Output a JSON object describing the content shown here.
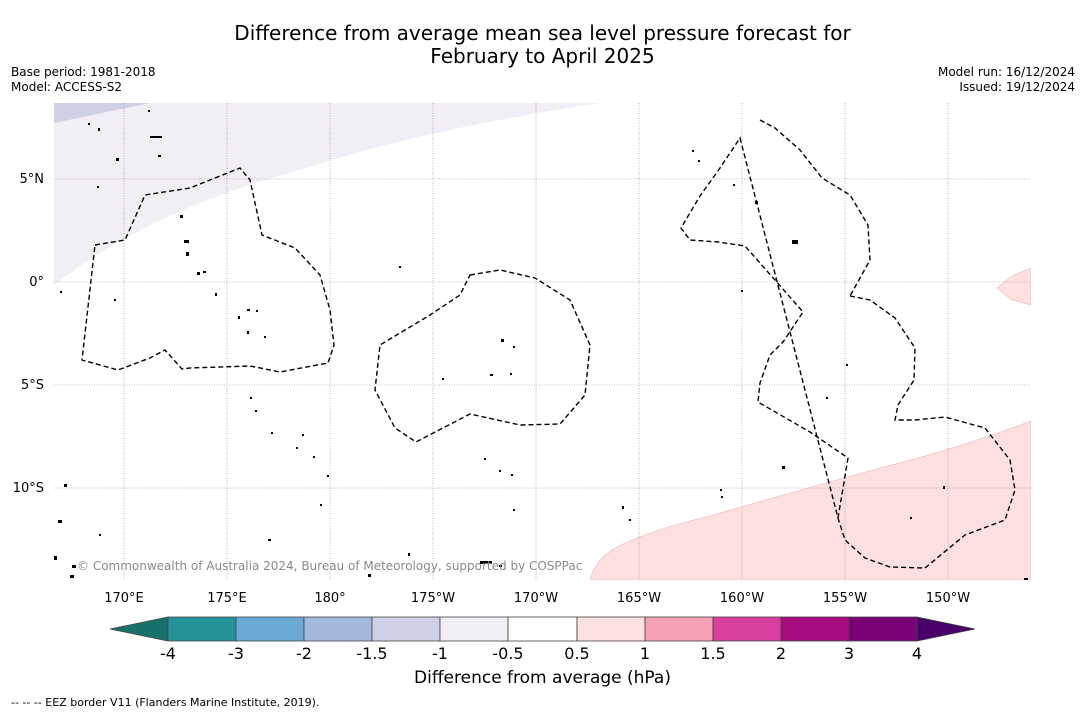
{
  "title_line1": "Difference from average mean sea level pressure forecast for",
  "title_line2": "February to April 2025",
  "base_period": "Base period: 1981-2018",
  "model": "Model: ACCESS-S2",
  "model_run": "Model run: 16/12/2024",
  "issued": "Issued: 19/12/2024",
  "copyright": "© Commonwealth of Australia 2024, Bureau of Meteorology, supported by COSPPac",
  "lat_labels": [
    "5°N",
    "0°",
    "5°S",
    "10°S"
  ],
  "lon_labels": [
    "170°E",
    "175°E",
    "180°",
    "175°W",
    "170°W",
    "165°W",
    "160°W",
    "155°W",
    "150°W"
  ],
  "colorbar": {
    "ticks": [
      "-4",
      "-3",
      "-2",
      "-1.5",
      "-1",
      "-0.5",
      "0.5",
      "1",
      "1.5",
      "2",
      "3",
      "4"
    ],
    "colors": [
      "#17706a",
      "#25939a",
      "#69a9d3",
      "#a5b8db",
      "#cfd0e6",
      "#f2eef5",
      "#ffffff",
      "#fde0df",
      "#f6a0b6",
      "#d93f9e",
      "#a80a7f",
      "#7a0277",
      "#4a006a"
    ],
    "label": "Difference from average (hPa)"
  },
  "legend_note": "--  --  -- EEZ border V11 (Flanders Marine Institute, 2019)."
}
